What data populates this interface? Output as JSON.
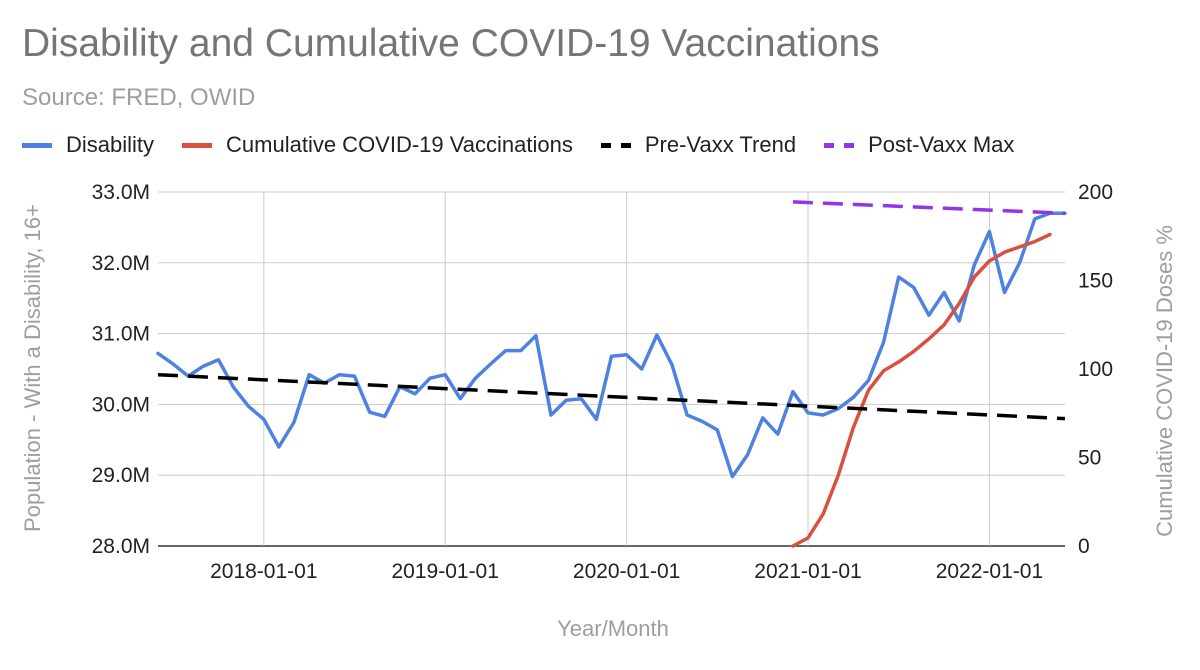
{
  "chart_data": {
    "type": "line",
    "title": "Disability and Cumulative COVID-19 Vaccinations",
    "subtitle": "Source: FRED, OWID",
    "xlabel": "Year/Month",
    "ylabel_left": "Population - With a Disability, 16+",
    "ylabel_right": "Cumulative COVID-19 Doses %",
    "x_ticks": [
      "2018-01-01",
      "2019-01-01",
      "2020-01-01",
      "2021-01-01",
      "2022-01-01"
    ],
    "y_left_ticks": [
      "28.0M",
      "29.0M",
      "30.0M",
      "31.0M",
      "32.0M",
      "33.0M"
    ],
    "y_right_ticks": [
      "0",
      "50",
      "100",
      "150",
      "200"
    ],
    "ylim_left": [
      28.0,
      33.0
    ],
    "ylim_right": [
      0,
      200
    ],
    "xlim": [
      "2017-06",
      "2022-06"
    ],
    "series": [
      {
        "name": "Disability",
        "axis": "left",
        "color": "#4f81e0",
        "style": "solid",
        "start": "2017-06",
        "values": [
          30.72,
          30.57,
          30.4,
          30.54,
          30.63,
          30.24,
          29.97,
          29.79,
          29.4,
          29.75,
          30.42,
          30.3,
          30.42,
          30.4,
          29.89,
          29.83,
          30.25,
          30.15,
          30.37,
          30.42,
          30.08,
          30.37,
          30.57,
          30.76,
          30.76,
          30.97,
          29.85,
          30.06,
          30.08,
          29.79,
          30.68,
          30.7,
          30.5,
          30.98,
          30.56,
          29.85,
          29.76,
          29.64,
          28.98,
          29.29,
          29.81,
          29.58,
          30.18,
          29.88,
          29.85,
          29.94,
          30.1,
          30.34,
          30.88,
          31.8,
          31.65,
          31.26,
          31.58,
          31.18,
          31.97,
          32.44,
          31.58,
          32.0,
          32.62,
          32.7,
          32.7
        ]
      },
      {
        "name": "Cumulative COVID-19 Vaccinations",
        "axis": "right",
        "color": "#d9503f",
        "style": "solid",
        "start": "2020-12",
        "values": [
          0,
          4.5,
          18,
          40,
          67,
          88,
          99,
          104,
          110,
          117,
          125,
          137,
          152,
          161,
          166,
          169,
          172,
          176
        ]
      },
      {
        "name": "Pre-Vaxx Trend",
        "axis": "left",
        "color": "#000000",
        "style": "dashed",
        "x": [
          "2017-06",
          "2022-06"
        ],
        "values": [
          30.42,
          29.8
        ]
      },
      {
        "name": "Post-Vaxx Max",
        "axis": "left",
        "color": "#9334e6",
        "style": "dashed",
        "x": [
          "2020-12",
          "2022-06"
        ],
        "values": [
          32.86,
          32.7
        ]
      }
    ]
  }
}
